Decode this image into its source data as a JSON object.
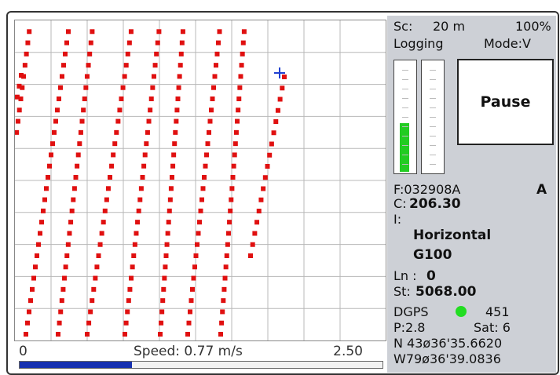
{
  "status": {
    "scale_label": "Sc:",
    "scale_value": "20 m",
    "zoom": "100%",
    "logging": "Logging",
    "mode": "Mode:V"
  },
  "gauges": {
    "left_level": 0.45,
    "right_level": 0.0,
    "fill_color": "#22cc22"
  },
  "pause_button": {
    "label": "Pause"
  },
  "info": {
    "file": "F:032908A",
    "flag": "A",
    "c_label": "C:",
    "c_value": "206.30",
    "i_label": "I:",
    "line_type": "Horizontal",
    "line_name": "G100",
    "ln_label": "Ln :",
    "ln_value": "0",
    "st_label": "St:",
    "st_value": "5068.00",
    "dgps_label": "DGPS",
    "dgps_color": "#22dd22",
    "dgps_value": "451",
    "pdop": "P:2.8",
    "sat": "Sat:  6",
    "lat": "N 43ø36'35.6620",
    "lon": "W79ø36'39.0836"
  },
  "speed": {
    "min": "0",
    "label": "Speed: 0.77 m/s",
    "max": "2.50",
    "fraction": 0.31,
    "bar_color": "#1630b0"
  },
  "map": {
    "track_color": "#e01010",
    "cursor_color": "#2040d0",
    "grid_color": "#b8b8b8"
  }
}
